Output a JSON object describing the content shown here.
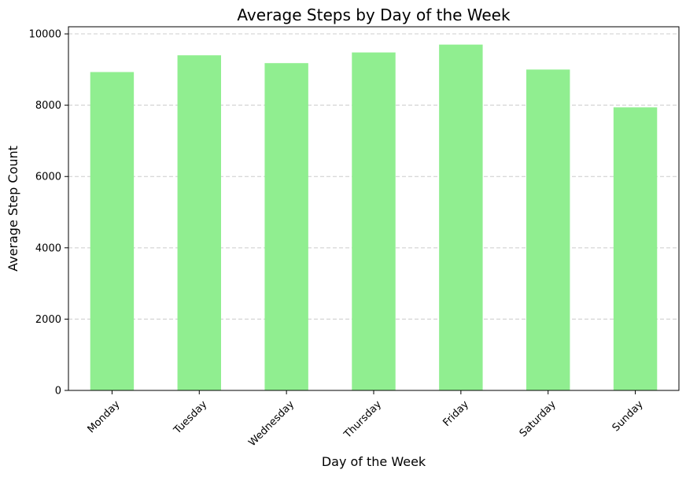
{
  "chart_data": {
    "type": "bar",
    "title": "Average Steps by Day of the Week",
    "xlabel": "Day of the Week",
    "ylabel": "Average Step Count",
    "categories": [
      "Monday",
      "Tuesday",
      "Wednesday",
      "Thursday",
      "Friday",
      "Saturday",
      "Sunday"
    ],
    "values": [
      8930,
      9400,
      9180,
      9480,
      9700,
      9000,
      7940
    ],
    "ylim": [
      0,
      10200
    ],
    "yticks": [
      0,
      2000,
      4000,
      6000,
      8000,
      10000
    ],
    "ytick_labels": [
      "0",
      "2000",
      "4000",
      "6000",
      "8000",
      "10000"
    ],
    "grid": {
      "y": true,
      "x": false,
      "style": "dashed"
    },
    "bar_color": "#90ee90",
    "grid_color": "#cccccc"
  }
}
